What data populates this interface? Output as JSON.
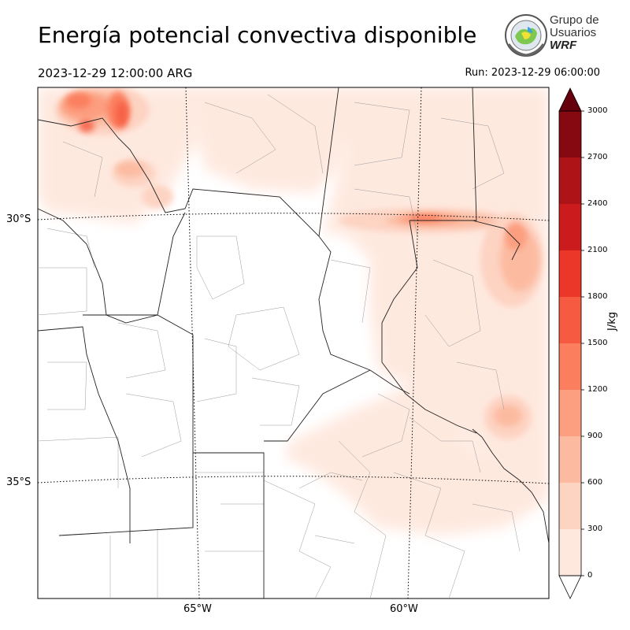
{
  "title": "Energía potencial convectiva disponible",
  "valid_time": "2023-12-29 12:00:00 ARG",
  "run_time": "Run: 2023-12-29 06:00:00",
  "logo": {
    "line1": "Grupo de",
    "line2": "Usuarios",
    "line3": "WRF",
    "icon": "wrf-users-group-logo"
  },
  "gridlines": {
    "lat_labels": [
      "30°S",
      "35°S"
    ],
    "lon_labels": [
      "65°W",
      "60°W"
    ]
  },
  "colorbar": {
    "label": "J/kg",
    "ticks": [
      "0",
      "300",
      "600",
      "900",
      "1200",
      "1500",
      "1800",
      "2100",
      "2400",
      "2700",
      "3000"
    ],
    "colors": [
      "#fee8de",
      "#fdd3c2",
      "#fcbba1",
      "#fc9e80",
      "#fb7f5f",
      "#f65b42",
      "#ea372a",
      "#cc1b1d",
      "#ae1318",
      "#860811"
    ],
    "extend": "both",
    "over_color": "#67000d",
    "under_color": "#ffffff"
  }
}
